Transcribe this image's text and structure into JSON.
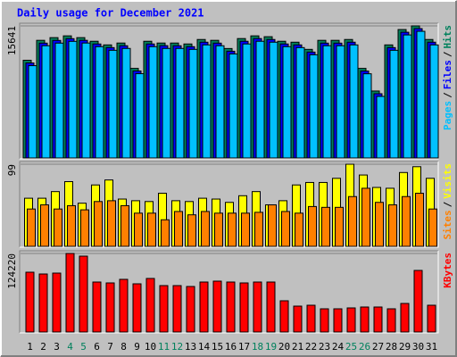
{
  "chart_data": [
    {
      "type": "bar",
      "title": "Daily usage for December 2021",
      "legend_separator": "/",
      "ylim": [
        0,
        15641
      ],
      "yticks": [
        15641
      ],
      "grid": true,
      "series": [
        {
          "name": "Hits",
          "color": "#00805c",
          "values": [
            11570,
            13930,
            14250,
            14460,
            14250,
            13820,
            13390,
            13610,
            10610,
            13820,
            13610,
            13610,
            13500,
            14030,
            13930,
            12960,
            14140,
            14460,
            14360,
            13820,
            13710,
            12860,
            13930,
            13930,
            14030,
            10610,
            7930,
            13390,
            15210,
            15641,
            14030
          ]
        },
        {
          "name": "Files",
          "color": "#0000ff",
          "values": [
            11250,
            13600,
            13920,
            14130,
            13930,
            13500,
            13070,
            13290,
            10300,
            13500,
            13300,
            13290,
            13180,
            13710,
            13600,
            12640,
            13820,
            14140,
            14030,
            13500,
            13390,
            12540,
            13600,
            13600,
            13710,
            10290,
            7610,
            13070,
            14890,
            15320,
            13710
          ]
        },
        {
          "name": "Pages",
          "color": "#00c0ff",
          "values": [
            10930,
            13290,
            13600,
            13810,
            13610,
            13180,
            12750,
            12970,
            9980,
            13180,
            12970,
            12970,
            12860,
            13390,
            13290,
            12320,
            13500,
            13820,
            13710,
            13180,
            13070,
            12220,
            13290,
            13290,
            13390,
            9970,
            7290,
            12750,
            14570,
            15000,
            13390
          ]
        }
      ]
    },
    {
      "type": "bar",
      "legend_separator": "/",
      "ylim": [
        0,
        99
      ],
      "yticks": [
        99
      ],
      "grid": true,
      "series": [
        {
          "name": "Visits",
          "color": "#ffff00",
          "values": [
            58,
            58,
            66,
            78,
            52,
            74,
            80,
            57,
            55,
            54,
            64,
            55,
            54,
            58,
            57,
            53,
            61,
            66,
            50,
            55,
            74,
            77,
            77,
            82,
            99,
            86,
            71,
            70,
            89,
            96,
            82
          ]
        },
        {
          "name": "Sites",
          "color": "#ff8000",
          "values": [
            45,
            50,
            45,
            49,
            44,
            54,
            55,
            49,
            40,
            40,
            32,
            42,
            38,
            42,
            40,
            40,
            40,
            41,
            50,
            42,
            40,
            48,
            47,
            47,
            60,
            70,
            53,
            50,
            60,
            64,
            45
          ]
        }
      ]
    },
    {
      "type": "bar",
      "legend_separator": "/",
      "ylim": [
        0,
        124220
      ],
      "yticks": [
        124220
      ],
      "grid": true,
      "categories": [
        "1",
        "2",
        "3",
        "4",
        "5",
        "6",
        "7",
        "8",
        "9",
        "10",
        "11",
        "12",
        "13",
        "14",
        "15",
        "16",
        "17",
        "18",
        "19",
        "20",
        "21",
        "22",
        "23",
        "24",
        "25",
        "26",
        "27",
        "28",
        "29",
        "30",
        "31"
      ],
      "category_colors": [
        "#000000",
        "#000000",
        "#000000",
        "#00805c",
        "#00805c",
        "#000000",
        "#000000",
        "#000000",
        "#000000",
        "#000000",
        "#00805c",
        "#00805c",
        "#000000",
        "#000000",
        "#000000",
        "#000000",
        "#000000",
        "#00805c",
        "#00805c",
        "#000000",
        "#000000",
        "#000000",
        "#000000",
        "#000000",
        "#00805c",
        "#00805c",
        "#000000",
        "#000000",
        "#000000",
        "#000000",
        "#000000"
      ],
      "series": [
        {
          "name": "KBytes",
          "color": "#ff0000",
          "values": [
            94580,
            91750,
            93170,
            124220,
            119990,
            79050,
            77640,
            83290,
            76230,
            84700,
            73400,
            73400,
            71990,
            79050,
            80460,
            79050,
            77640,
            79050,
            79050,
            49410,
            40940,
            42350,
            36700,
            36700,
            38110,
            39530,
            39530,
            36700,
            45170,
            97400,
            42350
          ]
        }
      ]
    }
  ]
}
